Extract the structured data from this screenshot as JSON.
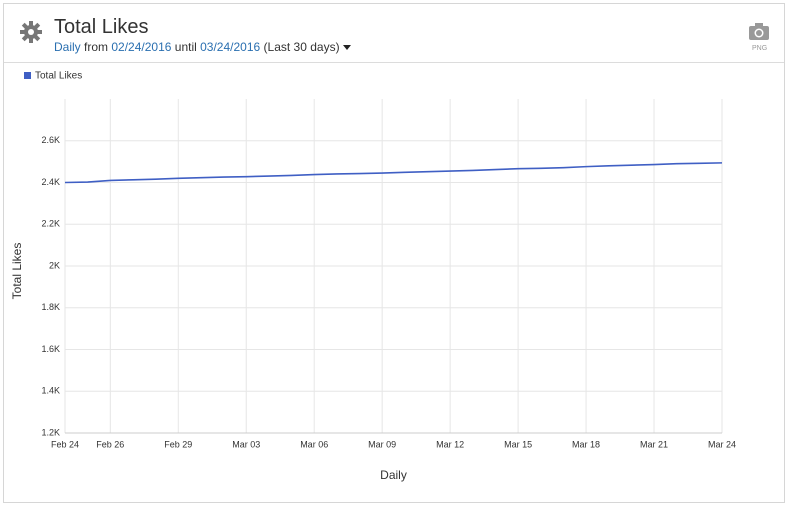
{
  "header": {
    "title": "Total Likes",
    "period": "Daily",
    "from_label": "from",
    "start": "02/24/2016",
    "until_label": "until",
    "end": "03/24/2016",
    "range": "(Last 30 days)"
  },
  "export": {
    "label": "PNG"
  },
  "chart_data": {
    "type": "line",
    "categories": [
      "Feb 24",
      null,
      "Feb 26",
      null,
      null,
      "Feb 29",
      null,
      null,
      "Mar 03",
      null,
      null,
      "Mar 06",
      null,
      null,
      "Mar 09",
      null,
      null,
      "Mar 12",
      null,
      null,
      "Mar 15",
      null,
      null,
      "Mar 18",
      null,
      null,
      "Mar 21",
      null,
      null,
      "Mar 24"
    ],
    "series": [
      {
        "name": "Total Likes",
        "color": "#3f5fc4",
        "values": [
          2400,
          2402,
          2410,
          2413,
          2416,
          2420,
          2423,
          2426,
          2428,
          2431,
          2434,
          2438,
          2441,
          2443,
          2445,
          2449,
          2452,
          2455,
          2458,
          2462,
          2466,
          2468,
          2471,
          2476,
          2480,
          2483,
          2486,
          2490,
          2492,
          2494
        ]
      }
    ],
    "ylim": [
      1200,
      2800
    ],
    "yticks": [
      {
        "value": 1200,
        "label": "1.2K"
      },
      {
        "value": 1400,
        "label": "1.4K"
      },
      {
        "value": 1600,
        "label": "1.6K"
      },
      {
        "value": 1800,
        "label": "1.8K"
      },
      {
        "value": 2000,
        "label": "2K"
      },
      {
        "value": 2200,
        "label": "2.2K"
      },
      {
        "value": 2400,
        "label": "2.4K"
      },
      {
        "value": 2600,
        "label": "2.6K"
      }
    ],
    "y_label": "Total Likes",
    "x_label": "Daily",
    "grid": true,
    "legend": "top-left"
  }
}
